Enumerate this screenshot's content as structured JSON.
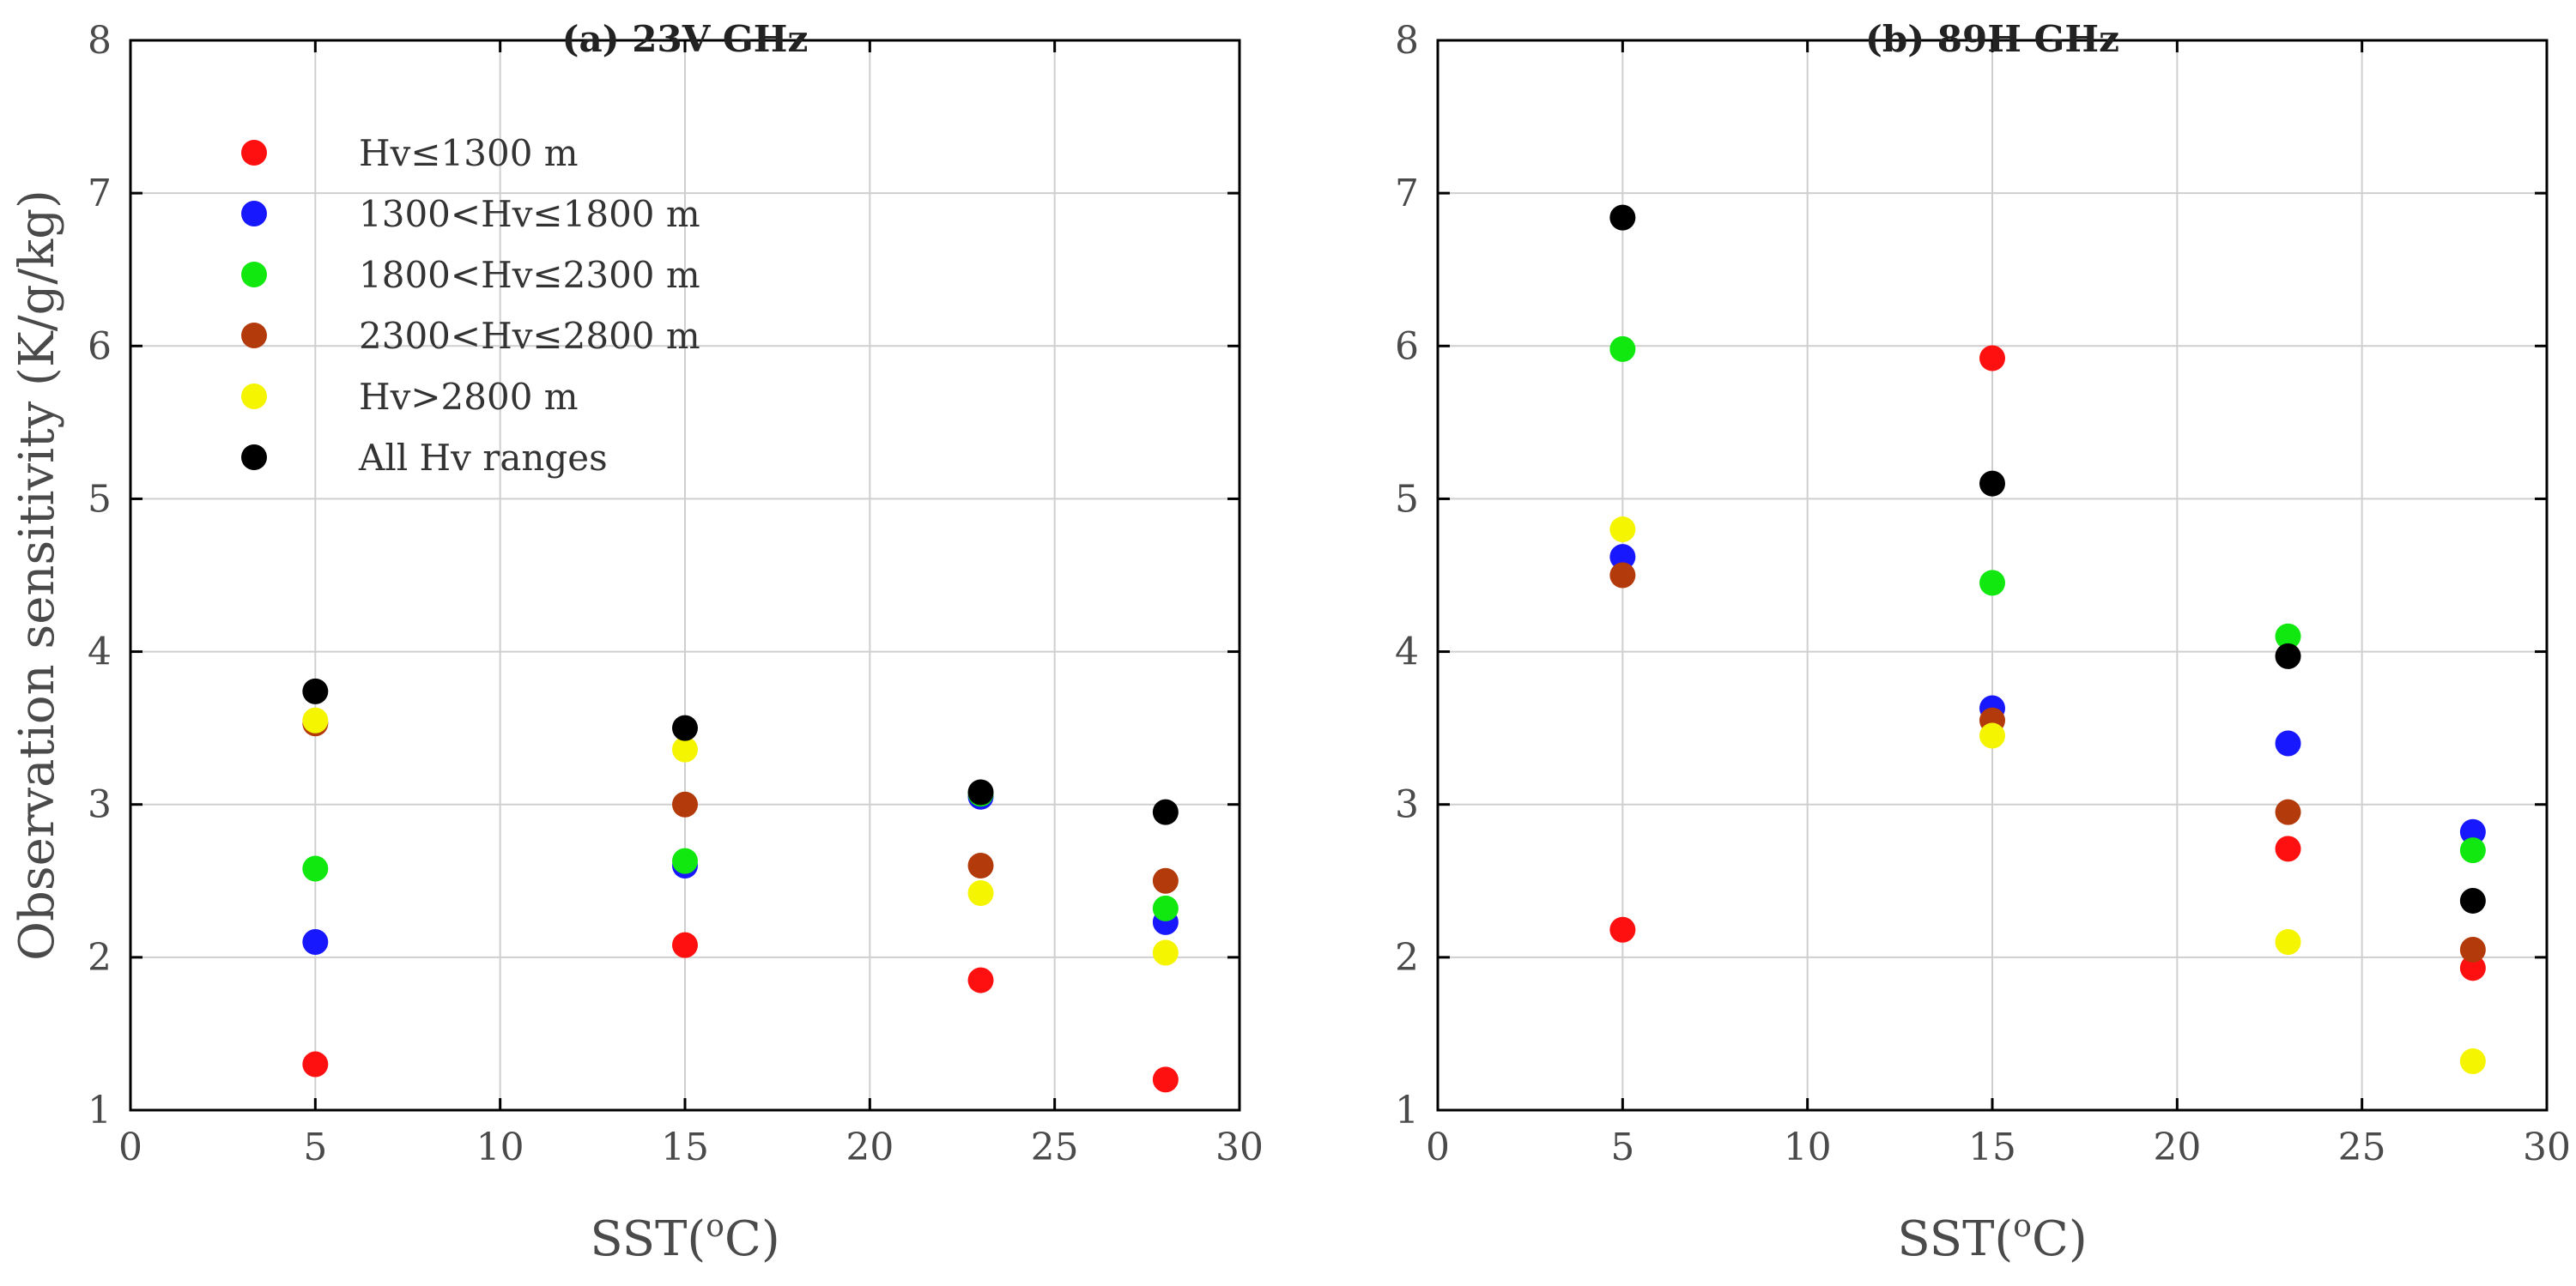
{
  "chart_data": [
    {
      "type": "scatter",
      "title": "(a) 23V GHz",
      "xlabel": "SST(",
      "xlabel_sup": "o",
      "xlabel_end": "C)",
      "ylabel": "Observation sensitivity (K/g/kg)",
      "xlim": [
        0,
        30
      ],
      "ylim": [
        1,
        8
      ],
      "xticks": [
        0,
        5,
        10,
        15,
        20,
        25,
        30
      ],
      "yticks": [
        1,
        2,
        3,
        4,
        5,
        6,
        7,
        8
      ],
      "grid": true,
      "legend_position": "top-left",
      "x": [
        5,
        15,
        23,
        28
      ],
      "series": [
        {
          "name": "Hv≤1300 m",
          "color": "#ff1010",
          "values": [
            1.3,
            2.08,
            1.85,
            1.2
          ]
        },
        {
          "name": "1300<Hv≤1800 m",
          "color": "#1818ff",
          "values": [
            2.1,
            2.6,
            3.05,
            2.23
          ]
        },
        {
          "name": "1800<Hv≤2300 m",
          "color": "#10e810",
          "values": [
            2.58,
            2.63,
            3.07,
            2.32
          ]
        },
        {
          "name": "2300<Hv≤2800 m",
          "color": "#b33a0a",
          "values": [
            3.53,
            3.0,
            2.6,
            2.5
          ]
        },
        {
          "name": "Hv>2800 m",
          "color": "#f5f500",
          "values": [
            3.55,
            3.36,
            2.42,
            2.03
          ]
        },
        {
          "name": "All Hv ranges",
          "color": "#000000",
          "values": [
            3.74,
            3.5,
            3.08,
            2.95
          ]
        }
      ]
    },
    {
      "type": "scatter",
      "title": "(b) 89H GHz",
      "xlabel": "SST(",
      "xlabel_sup": "o",
      "xlabel_end": "C)",
      "ylabel": "",
      "xlim": [
        0,
        30
      ],
      "ylim": [
        1,
        8
      ],
      "xticks": [
        0,
        5,
        10,
        15,
        20,
        25,
        30
      ],
      "yticks": [
        1,
        2,
        3,
        4,
        5,
        6,
        7,
        8
      ],
      "grid": true,
      "x": [
        5,
        15,
        23,
        28
      ],
      "series": [
        {
          "name": "Hv≤1300 m",
          "color": "#ff1010",
          "values": [
            2.18,
            5.92,
            2.71,
            1.93
          ]
        },
        {
          "name": "1300<Hv≤1800 m",
          "color": "#1818ff",
          "values": [
            4.62,
            3.63,
            3.4,
            2.82
          ]
        },
        {
          "name": "1800<Hv≤2300 m",
          "color": "#10e810",
          "values": [
            5.98,
            4.45,
            4.1,
            2.7
          ]
        },
        {
          "name": "2300<Hv≤2800 m",
          "color": "#b33a0a",
          "values": [
            4.5,
            3.55,
            2.95,
            2.05
          ]
        },
        {
          "name": "Hv>2800 m",
          "color": "#f5f500",
          "values": [
            4.8,
            3.45,
            2.1,
            1.32
          ]
        },
        {
          "name": "All Hv ranges",
          "color": "#000000",
          "values": [
            6.84,
            5.1,
            3.97,
            2.37
          ]
        }
      ]
    }
  ]
}
